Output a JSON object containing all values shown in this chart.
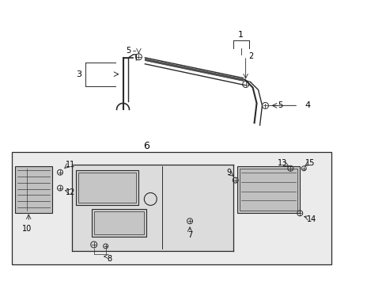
{
  "bg_color": "#ffffff",
  "line_color": "#2a2a2a",
  "gray_fill": "#e8e8e8",
  "dark_gray": "#555555",
  "figsize": [
    4.89,
    3.6
  ],
  "dpi": 100
}
